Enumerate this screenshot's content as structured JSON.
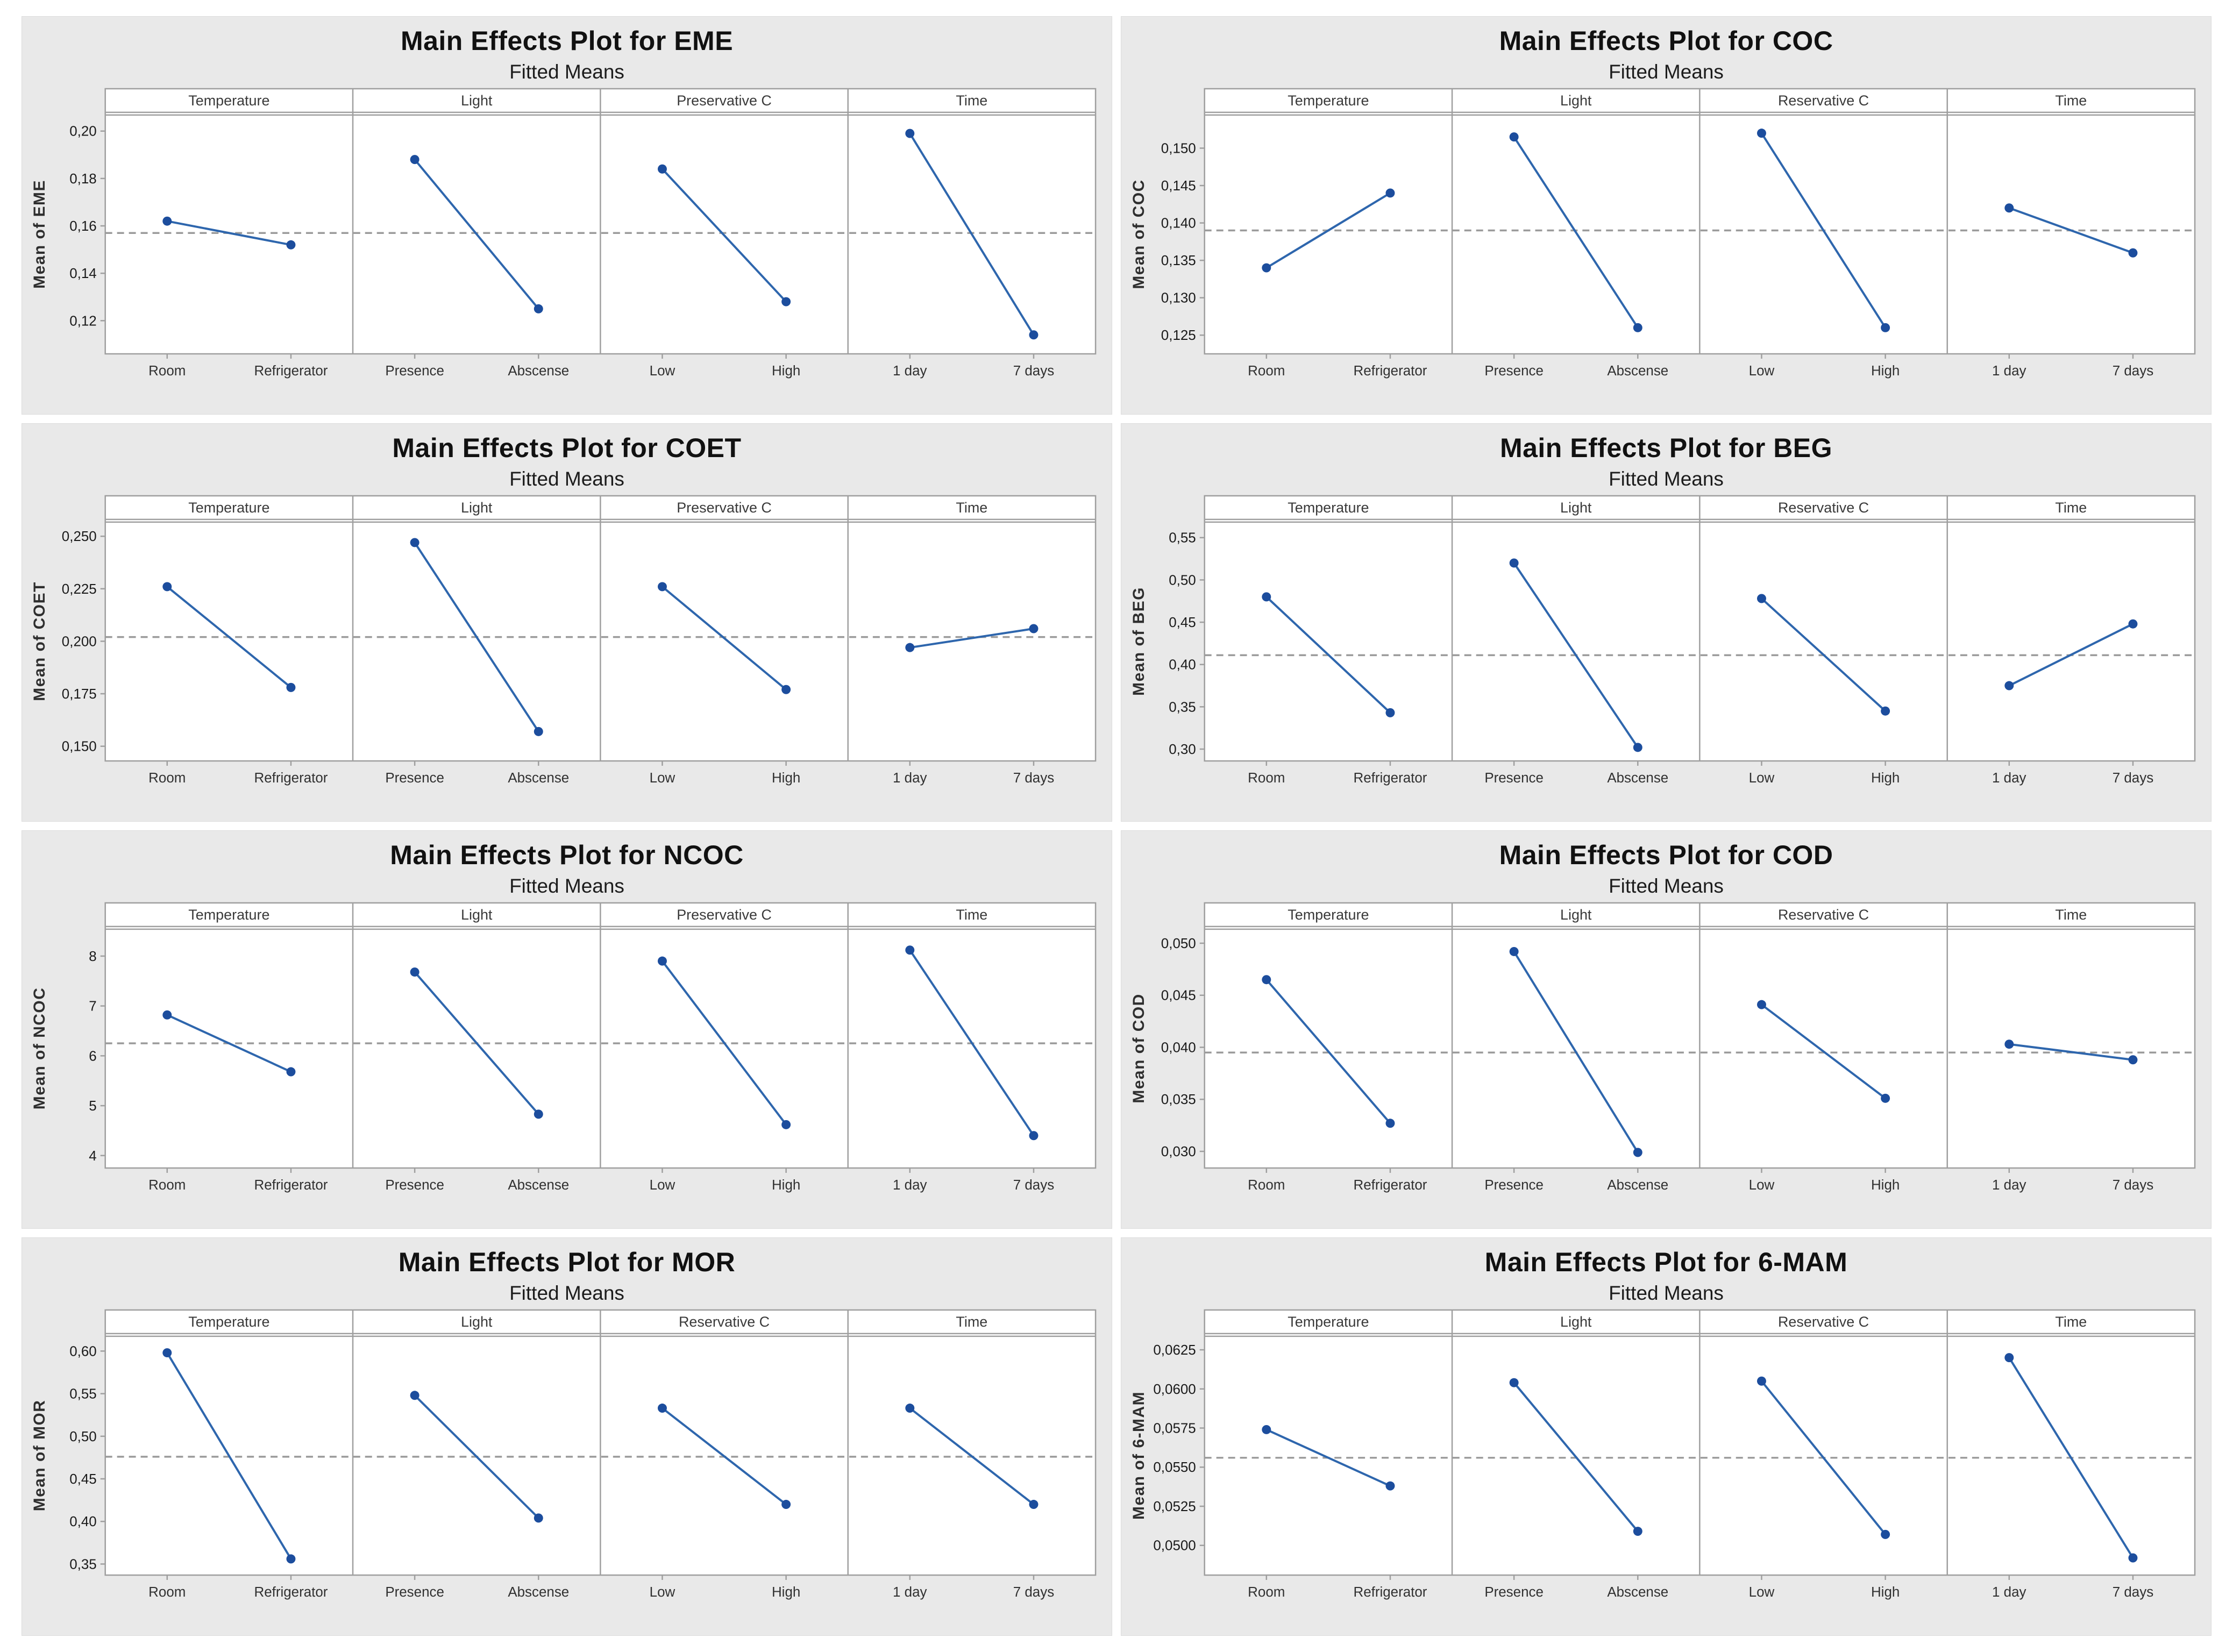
{
  "colors": {
    "card_bg": "#e9e9e9",
    "panel_bg": "#ffffff",
    "border": "#9f9f9f",
    "line": "#2e66ad",
    "marker": "#1c4d9d",
    "dashed": "#9b9b9b"
  },
  "chart_data": [
    {
      "id": "EME",
      "type": "line",
      "title": "Main Effects Plot for EME",
      "subtitle": "Fitted Means",
      "ylabel": "Mean of EME",
      "ymin": 0.106,
      "ymax": 0.207,
      "mean_line": 0.157,
      "grid": false,
      "yticks": [
        {
          "v": 0.12,
          "label": "0,12"
        },
        {
          "v": 0.14,
          "label": "0,14"
        },
        {
          "v": 0.16,
          "label": "0,16"
        },
        {
          "v": 0.18,
          "label": "0,18"
        },
        {
          "v": 0.2,
          "label": "0,20"
        }
      ],
      "panels": [
        {
          "header": "Temperature",
          "categories": [
            "Room",
            "Refrigerator"
          ],
          "values": [
            0.162,
            0.152
          ]
        },
        {
          "header": "Light",
          "categories": [
            "Presence",
            "Abscense"
          ],
          "values": [
            0.188,
            0.125
          ]
        },
        {
          "header": "Preservative C",
          "categories": [
            "Low",
            "High"
          ],
          "values": [
            0.184,
            0.128
          ]
        },
        {
          "header": "Time",
          "categories": [
            "1 day",
            "7 days"
          ],
          "values": [
            0.199,
            0.114
          ]
        }
      ]
    },
    {
      "id": "COC",
      "type": "line",
      "title": "Main Effects Plot for COC",
      "subtitle": "Fitted Means",
      "ylabel": "Mean of COC",
      "ymin": 0.1225,
      "ymax": 0.1545,
      "mean_line": 0.139,
      "grid": false,
      "yticks": [
        {
          "v": 0.125,
          "label": "0,125"
        },
        {
          "v": 0.13,
          "label": "0,130"
        },
        {
          "v": 0.135,
          "label": "0,135"
        },
        {
          "v": 0.14,
          "label": "0,140"
        },
        {
          "v": 0.145,
          "label": "0,145"
        },
        {
          "v": 0.15,
          "label": "0,150"
        }
      ],
      "panels": [
        {
          "header": "Temperature",
          "categories": [
            "Room",
            "Refrigerator"
          ],
          "values": [
            0.134,
            0.144
          ]
        },
        {
          "header": "Light",
          "categories": [
            "Presence",
            "Abscense"
          ],
          "values": [
            0.1515,
            0.126
          ]
        },
        {
          "header": "Reservative C",
          "categories": [
            "Low",
            "High"
          ],
          "values": [
            0.152,
            0.126
          ]
        },
        {
          "header": "Time",
          "categories": [
            "1 day",
            "7 days"
          ],
          "values": [
            0.142,
            0.136
          ]
        }
      ]
    },
    {
      "id": "COET",
      "type": "line",
      "title": "Main Effects Plot for COET",
      "subtitle": "Fitted Means",
      "ylabel": "Mean of COET",
      "ymin": 0.143,
      "ymax": 0.257,
      "mean_line": 0.202,
      "grid": false,
      "yticks": [
        {
          "v": 0.15,
          "label": "0,150"
        },
        {
          "v": 0.175,
          "label": "0,175"
        },
        {
          "v": 0.2,
          "label": "0,200"
        },
        {
          "v": 0.225,
          "label": "0,225"
        },
        {
          "v": 0.25,
          "label": "0,250"
        }
      ],
      "panels": [
        {
          "header": "Temperature",
          "categories": [
            "Room",
            "Refrigerator"
          ],
          "values": [
            0.226,
            0.178
          ]
        },
        {
          "header": "Light",
          "categories": [
            "Presence",
            "Abscense"
          ],
          "values": [
            0.247,
            0.157
          ]
        },
        {
          "header": "Preservative C",
          "categories": [
            "Low",
            "High"
          ],
          "values": [
            0.226,
            0.177
          ]
        },
        {
          "header": "Time",
          "categories": [
            "1 day",
            "7 days"
          ],
          "values": [
            0.197,
            0.206
          ]
        }
      ]
    },
    {
      "id": "BEG",
      "type": "line",
      "title": "Main Effects Plot for BEG",
      "subtitle": "Fitted Means",
      "ylabel": "Mean of BEG",
      "ymin": 0.286,
      "ymax": 0.569,
      "mean_line": 0.411,
      "grid": false,
      "yticks": [
        {
          "v": 0.3,
          "label": "0,30"
        },
        {
          "v": 0.35,
          "label": "0,35"
        },
        {
          "v": 0.4,
          "label": "0,40"
        },
        {
          "v": 0.45,
          "label": "0,45"
        },
        {
          "v": 0.5,
          "label": "0,50"
        },
        {
          "v": 0.55,
          "label": "0,55"
        }
      ],
      "panels": [
        {
          "header": "Temperature",
          "categories": [
            "Room",
            "Refrigerator"
          ],
          "values": [
            0.48,
            0.343
          ]
        },
        {
          "header": "Light",
          "categories": [
            "Presence",
            "Abscense"
          ],
          "values": [
            0.52,
            0.302
          ]
        },
        {
          "header": "Reservative C",
          "categories": [
            "Low",
            "High"
          ],
          "values": [
            0.478,
            0.345
          ]
        },
        {
          "header": "Time",
          "categories": [
            "1 day",
            "7 days"
          ],
          "values": [
            0.375,
            0.448
          ]
        }
      ]
    },
    {
      "id": "NCOC",
      "type": "line",
      "title": "Main Effects Plot for NCOC",
      "subtitle": "Fitted Means",
      "ylabel": "Mean of NCOC",
      "ymin": 3.75,
      "ymax": 8.55,
      "mean_line": 6.25,
      "grid": false,
      "yticks": [
        {
          "v": 4,
          "label": "4"
        },
        {
          "v": 5,
          "label": "5"
        },
        {
          "v": 6,
          "label": "6"
        },
        {
          "v": 7,
          "label": "7"
        },
        {
          "v": 8,
          "label": "8"
        }
      ],
      "panels": [
        {
          "header": "Temperature",
          "categories": [
            "Room",
            "Refrigerator"
          ],
          "values": [
            6.82,
            5.68
          ]
        },
        {
          "header": "Light",
          "categories": [
            "Presence",
            "Abscense"
          ],
          "values": [
            7.68,
            4.83
          ]
        },
        {
          "header": "Preservative C",
          "categories": [
            "Low",
            "High"
          ],
          "values": [
            7.9,
            4.62
          ]
        },
        {
          "header": "Time",
          "categories": [
            "1 day",
            "7 days"
          ],
          "values": [
            8.12,
            4.4
          ]
        }
      ]
    },
    {
      "id": "COD",
      "type": "line",
      "title": "Main Effects Plot for COD",
      "subtitle": "Fitted Means",
      "ylabel": "Mean of COD",
      "ymin": 0.0284,
      "ymax": 0.0514,
      "mean_line": 0.0395,
      "grid": false,
      "yticks": [
        {
          "v": 0.03,
          "label": "0,030"
        },
        {
          "v": 0.035,
          "label": "0,035"
        },
        {
          "v": 0.04,
          "label": "0,040"
        },
        {
          "v": 0.045,
          "label": "0,045"
        },
        {
          "v": 0.05,
          "label": "0,050"
        }
      ],
      "panels": [
        {
          "header": "Temperature",
          "categories": [
            "Room",
            "Refrigerator"
          ],
          "values": [
            0.0465,
            0.0327
          ]
        },
        {
          "header": "Light",
          "categories": [
            "Presence",
            "Abscense"
          ],
          "values": [
            0.0492,
            0.0299
          ]
        },
        {
          "header": "Reservative C",
          "categories": [
            "Low",
            "High"
          ],
          "values": [
            0.0441,
            0.0351
          ]
        },
        {
          "header": "Time",
          "categories": [
            "1 day",
            "7 days"
          ],
          "values": [
            0.0403,
            0.0388
          ]
        }
      ]
    },
    {
      "id": "MOR",
      "type": "line",
      "title": "Main Effects Plot for MOR",
      "subtitle": "Fitted Means",
      "ylabel": "Mean of MOR",
      "ymin": 0.337,
      "ymax": 0.618,
      "mean_line": 0.476,
      "grid": false,
      "yticks": [
        {
          "v": 0.35,
          "label": "0,35"
        },
        {
          "v": 0.4,
          "label": "0,40"
        },
        {
          "v": 0.45,
          "label": "0,45"
        },
        {
          "v": 0.5,
          "label": "0,50"
        },
        {
          "v": 0.55,
          "label": "0,55"
        },
        {
          "v": 0.6,
          "label": "0,60"
        }
      ],
      "panels": [
        {
          "header": "Temperature",
          "categories": [
            "Room",
            "Refrigerator"
          ],
          "values": [
            0.598,
            0.356
          ]
        },
        {
          "header": "Light",
          "categories": [
            "Presence",
            "Abscense"
          ],
          "values": [
            0.548,
            0.404
          ]
        },
        {
          "header": "Reservative C",
          "categories": [
            "Low",
            "High"
          ],
          "values": [
            0.533,
            0.42
          ]
        },
        {
          "header": "Time",
          "categories": [
            "1 day",
            "7 days"
          ],
          "values": [
            0.533,
            0.42
          ]
        }
      ]
    },
    {
      "id": "6-MAM",
      "type": "line",
      "title": "Main Effects Plot for 6-MAM",
      "subtitle": "Fitted Means",
      "ylabel": "Mean of 6-MAM",
      "ymin": 0.0481,
      "ymax": 0.0634,
      "mean_line": 0.0556,
      "grid": false,
      "yticks": [
        {
          "v": 0.05,
          "label": "0,0500"
        },
        {
          "v": 0.0525,
          "label": "0,0525"
        },
        {
          "v": 0.055,
          "label": "0,0550"
        },
        {
          "v": 0.0575,
          "label": "0,0575"
        },
        {
          "v": 0.06,
          "label": "0,0600"
        },
        {
          "v": 0.0625,
          "label": "0,0625"
        }
      ],
      "panels": [
        {
          "header": "Temperature",
          "categories": [
            "Room",
            "Refrigerator"
          ],
          "values": [
            0.0574,
            0.0538
          ]
        },
        {
          "header": "Light",
          "categories": [
            "Presence",
            "Abscense"
          ],
          "values": [
            0.0604,
            0.0509
          ]
        },
        {
          "header": "Reservative C",
          "categories": [
            "Low",
            "High"
          ],
          "values": [
            0.0605,
            0.0507
          ]
        },
        {
          "header": "Time",
          "categories": [
            "1 day",
            "7 days"
          ],
          "values": [
            0.062,
            0.0492
          ]
        }
      ]
    }
  ]
}
